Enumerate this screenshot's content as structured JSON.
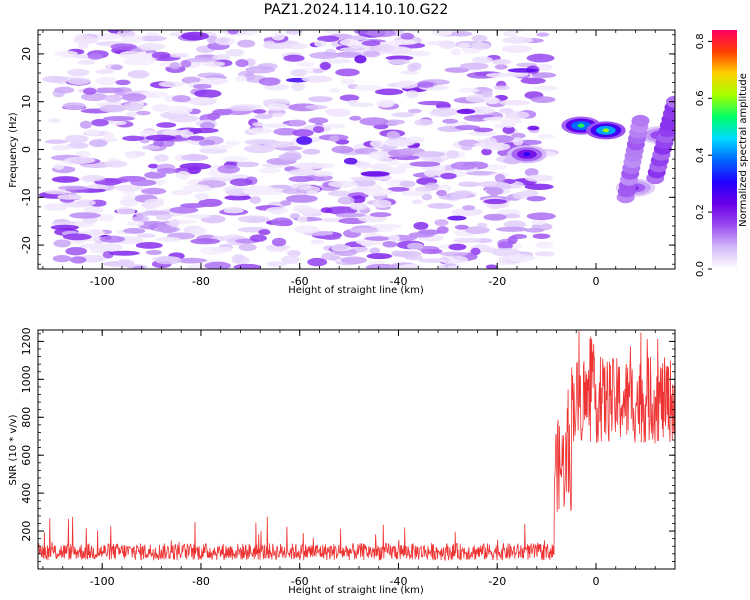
{
  "figure_title": "PAZ1.2024.114.10.10.G22",
  "chart_data": [
    {
      "type": "heatmap",
      "xlabel": "Height of straight line (km)",
      "ylabel": "Frequency (Hz)",
      "xlim": [
        -113,
        16
      ],
      "ylim": [
        -25,
        25
      ],
      "xticks": [
        -100,
        -80,
        -60,
        -40,
        -20,
        0
      ],
      "yticks": [
        -20,
        -10,
        0,
        10,
        20
      ],
      "colorbar": {
        "label": "Normalized spectral amplitude",
        "range": [
          0.0,
          0.84
        ],
        "ticks": [
          "0.0",
          "0.2",
          "0.4",
          "0.6",
          "0.8"
        ],
        "tick_values": [
          0.0,
          0.2,
          0.4,
          0.6,
          0.8
        ],
        "colormap": [
          "#ffffff",
          "#d4b8f8",
          "#9a4cf0",
          "#6a00e8",
          "#2200ff",
          "#0066ff",
          "#00d9ff",
          "#00ff66",
          "#a6ff00",
          "#ffd000",
          "#ff4000",
          "#ff0066"
        ]
      },
      "noise_region": {
        "x": [
          -110,
          -10
        ],
        "y": [
          -25,
          25
        ],
        "typical_amplitude": [
          0.02,
          0.2
        ]
      },
      "features": [
        {
          "x": -3,
          "y": 5,
          "amplitude": 0.55
        },
        {
          "x": 2,
          "y": 4,
          "amplitude": 0.6
        },
        {
          "x": -14,
          "y": -1,
          "amplitude": 0.3
        },
        {
          "x": 8,
          "y": -8,
          "amplitude": 0.2
        },
        {
          "x": 13,
          "y": 3,
          "amplitude": 0.22
        }
      ]
    },
    {
      "type": "line",
      "xlabel": "Height of straight line (km)",
      "ylabel": "SNR (10 * v/v)",
      "xlim": [
        -113,
        16
      ],
      "ylim": [
        0,
        1260
      ],
      "xticks": [
        -100,
        -80,
        -60,
        -40,
        -20,
        0
      ],
      "yticks": [
        200,
        400,
        600,
        800,
        1000,
        1200
      ],
      "series_color": "#ee3333",
      "segments": [
        {
          "x_start": -113,
          "x_end": -8.5,
          "mean_snr": 100,
          "min_snr": 10,
          "max_snr": 280
        },
        {
          "x_start": -8.5,
          "x_end": -5,
          "mean_snr": 550,
          "min_snr": 130,
          "max_snr": 950
        },
        {
          "x_start": -5,
          "x_end": 16,
          "mean_snr": 900,
          "min_snr": 500,
          "max_snr": 1260
        }
      ]
    }
  ]
}
